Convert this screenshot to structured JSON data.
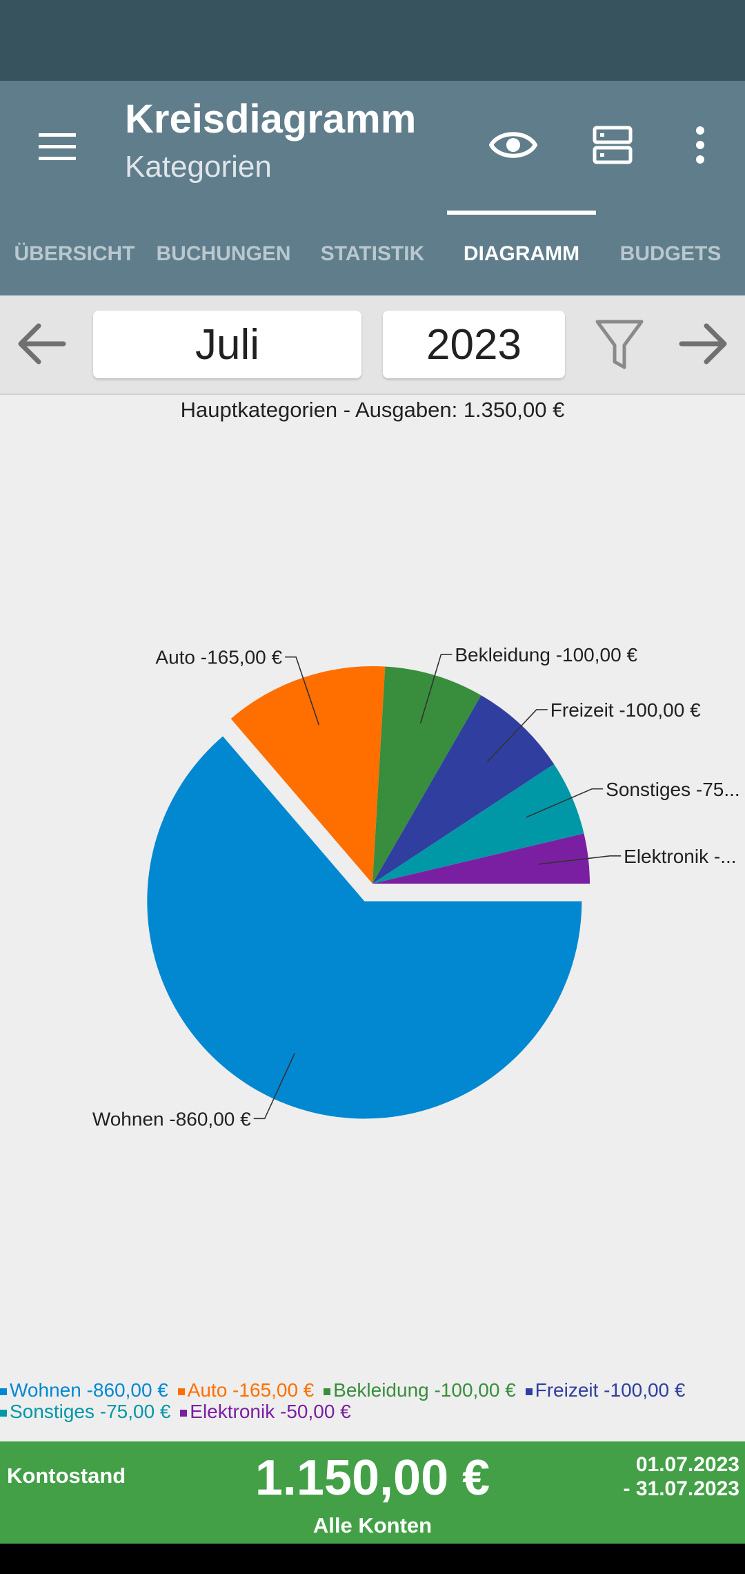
{
  "app_bar": {
    "title": "Kreisdiagramm",
    "subtitle": "Kategorien",
    "icons": [
      "menu-icon",
      "eye-icon",
      "server-icon",
      "more-vert-icon"
    ]
  },
  "tabs": [
    {
      "label": "ÜBERSICHT",
      "active": false
    },
    {
      "label": "BUCHUNGEN",
      "active": false
    },
    {
      "label": "STATISTIK",
      "active": false
    },
    {
      "label": "DIAGRAMM",
      "active": true
    },
    {
      "label": "BUDGETS",
      "active": false
    }
  ],
  "toolbar": {
    "month": "Juli",
    "year": "2023",
    "icons": [
      "arrow-left-icon",
      "filter-icon",
      "arrow-right-icon"
    ]
  },
  "chart_title": "Hauptkategorien - Ausgaben: 1.350,00 €",
  "chart_data": {
    "type": "pie",
    "title": "Hauptkategorien - Ausgaben: 1.350,00 €",
    "slices": [
      {
        "name": "Wohnen",
        "value": 860,
        "label": "Wohnen -860,00 €",
        "color": "#0288d1",
        "exploded": true
      },
      {
        "name": "Auto",
        "value": 165,
        "label": "Auto -165,00 €",
        "color": "#ff6f00",
        "exploded": false
      },
      {
        "name": "Bekleidung",
        "value": 100,
        "label": "Bekleidung -100,00 €",
        "color": "#388e3c",
        "exploded": false
      },
      {
        "name": "Freizeit",
        "value": 100,
        "label": "Freizeit -100,00 €",
        "color": "#303f9f",
        "exploded": false
      },
      {
        "name": "Sonstiges",
        "value": 75,
        "label": "Sonstiges -75...",
        "color": "#0097a7",
        "exploded": false
      },
      {
        "name": "Elektronik",
        "value": 50,
        "label": "Elektronik -...",
        "color": "#7b1fa2",
        "exploded": false
      }
    ]
  },
  "legend": [
    {
      "label": "Wohnen -860,00 €",
      "color": "#0288d1"
    },
    {
      "label": "Auto -165,00 €",
      "color": "#ff6f00"
    },
    {
      "label": "Bekleidung -100,00 €",
      "color": "#388e3c"
    },
    {
      "label": "Freizeit -100,00 €",
      "color": "#303f9f"
    },
    {
      "label": "Sonstiges -75,00 €",
      "color": "#0097a7"
    },
    {
      "label": "Elektronik -50,00 €",
      "color": "#7b1fa2"
    }
  ],
  "footer": {
    "label": "Kontostand",
    "amount": "1.150,00 €",
    "accounts": "Alle Konten",
    "date_from": "01.07.2023",
    "date_to": "- 31.07.2023",
    "background": "#43a047"
  }
}
